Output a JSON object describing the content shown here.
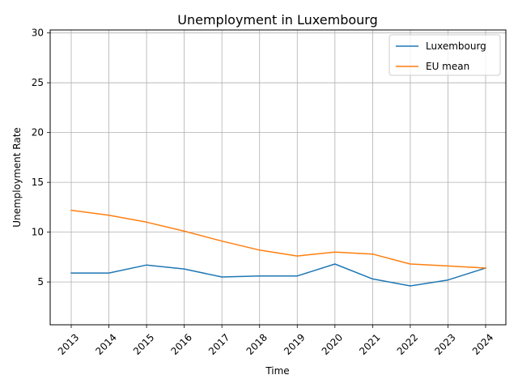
{
  "chart_data": {
    "type": "line",
    "title": "Unemployment in Luxembourg",
    "xlabel": "Time",
    "ylabel": "Unemployment Rate",
    "x": [
      "2013",
      "2014",
      "2015",
      "2016",
      "2017",
      "2018",
      "2019",
      "2020",
      "2021",
      "2022",
      "2023",
      "2024"
    ],
    "ylim": [
      0.7,
      30.3
    ],
    "yticks": [
      5,
      10,
      15,
      20,
      25,
      30
    ],
    "grid": true,
    "legend_position": "top-right",
    "series": [
      {
        "name": "Luxembourg",
        "color": "#1f77b4",
        "values": [
          5.9,
          5.9,
          6.7,
          6.3,
          5.5,
          5.6,
          5.6,
          6.8,
          5.3,
          4.6,
          5.2,
          6.4
        ]
      },
      {
        "name": "EU mean",
        "color": "#ff7f0e",
        "values": [
          12.2,
          11.7,
          11.0,
          10.1,
          9.1,
          8.2,
          7.6,
          8.0,
          7.8,
          6.8,
          6.6,
          6.4
        ]
      }
    ]
  }
}
